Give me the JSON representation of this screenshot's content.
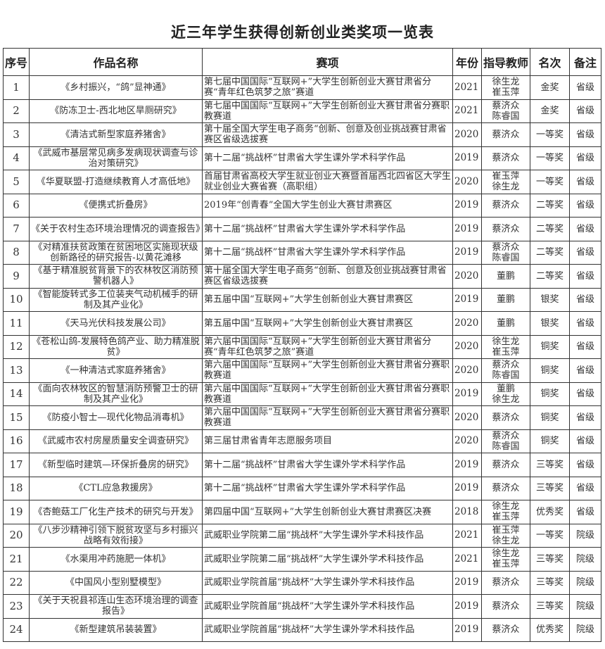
{
  "title": "近三年学生获得创新创业类奖项一览表",
  "headers": [
    "序号",
    "作品名称",
    "赛项",
    "年份",
    "指导教师",
    "名次",
    "备注"
  ],
  "rows": [
    {
      "no": "1",
      "name": "《乡村振兴，“鸽”显神通》",
      "competition": "第七届中国国际“互联网+”大学生创新创业大赛甘肃省分赛“青年红色筑梦之旅”赛道",
      "year": "2021",
      "teacher": "徐生龙 崔玉萍",
      "rank": "金奖",
      "level": "省级"
    },
    {
      "no": "2",
      "name": "《防冻卫士-西北地区旱厕研究》",
      "competition": "第七届中国国际“互联网+”大学生创新创业大赛甘肃省分赛职教赛道",
      "year": "2021",
      "teacher": "蔡济众 陈睿国",
      "rank": "金奖",
      "level": "省级"
    },
    {
      "no": "3",
      "name": "《清洁式新型家庭养猪舍》",
      "competition": "第十届全国大学生电子商务“创新、创意及创业挑战赛甘肃省赛区省级选拔赛",
      "year": "2020",
      "teacher": "蔡济众",
      "rank": "一等奖",
      "level": "省级"
    },
    {
      "no": "4",
      "name": "《武威市基层常见病多发病现状调查与诊治对策研究》",
      "competition": "第十二届“挑战杯”甘肃省大学生课外学术科学作品",
      "year": "2019",
      "teacher": "蔡济众",
      "rank": "一等奖",
      "level": "省级"
    },
    {
      "no": "5",
      "name": "《华夏联盟-打造继续教育人才高低地》",
      "competition": "首届甘肃省高校大学生就业创业大赛暨首届西北四省区大学生就业创业大赛省赛（高职组）",
      "year": "2020",
      "teacher": "崔玉萍 徐生龙",
      "rank": "一等奖",
      "level": "省级"
    },
    {
      "no": "6",
      "name": "《便携式折叠房》",
      "competition": "2019年“创青春”全国大学生创业大赛甘肃赛区",
      "year": "2019",
      "teacher": "蔡济众",
      "rank": "二等奖",
      "level": "省级"
    },
    {
      "no": "7",
      "name": "《关于农村生态环境治理情况的调查报告》",
      "competition": "第十二届“挑战杯”甘肃省大学生课外学术科学作品",
      "year": "2019",
      "teacher": "蔡济众",
      "rank": "二等奖",
      "level": "省级"
    },
    {
      "no": "8",
      "name": "《对精准扶贫政策在贫困地区实施现状级创新路径的研究报告-以黄花滩移",
      "competition": "第十二届“挑战杯”甘肃省大学生课外学术科学作品",
      "year": "2019",
      "teacher": "蔡济众 陈睿国",
      "rank": "二等奖",
      "level": "省级"
    },
    {
      "no": "9",
      "name": "《基于精准脱贫背景下的农林牧区消防预警机器人》",
      "competition": "第十届全国大学生电子商务“创新、创意及创业挑战赛甘肃省赛区省级选拔赛",
      "year": "2020",
      "teacher": "董鹏",
      "rank": "二等奖",
      "level": "省级"
    },
    {
      "no": "10",
      "name": "《智能旋转式多工位装夹气动机械手的研制及其产业化》",
      "competition": "第五届中国“互联网+”大学生创新创业大赛甘肃赛区",
      "year": "2019",
      "teacher": "董鹏",
      "rank": "银奖",
      "level": "省级"
    },
    {
      "no": "11",
      "name": "《天马光伏科技发展公司》",
      "competition": "第五届中国“互联网+”大学生创新创业大赛甘肃赛区",
      "year": "2020",
      "teacher": "董鹏",
      "rank": "银奖",
      "level": "省级"
    },
    {
      "no": "12",
      "name": "《苍松山鸽-发展特色鸽产业、助力精准脱贫》",
      "competition": "第六届中国国际“互联网+”大学生创新创业大赛甘肃省分赛“青年红色筑梦之旅”赛道",
      "year": "2020",
      "teacher": "徐生龙 崔玉萍",
      "rank": "铜奖",
      "level": "省级"
    },
    {
      "no": "13",
      "name": "《一种清洁式家庭养猪舍》",
      "competition": "第六届中国国际“互联网+”大学生创新创业大赛甘肃省分赛职教赛道",
      "year": "2020",
      "teacher": "蔡济众 陈睿国",
      "rank": "铜奖",
      "level": "省级"
    },
    {
      "no": "14",
      "name": "《面向农林牧区的智慧消防预警卫士的研制及其产业化》",
      "competition": "第六届中国国际“互联网+”大学生创新创业大赛甘肃省分赛职教赛道",
      "year": "2019",
      "teacher": "董鹏 徐生龙",
      "rank": "铜奖",
      "level": "省级"
    },
    {
      "no": "15",
      "name": "《防疫小智士—现代化物品消毒机》",
      "competition": "第六届中国国际“互联网+”大学生创新创业大赛甘肃省分赛职教赛道",
      "year": "2020",
      "teacher": "蔡济众",
      "rank": "铜奖",
      "level": "省级"
    },
    {
      "no": "16",
      "name": "《武威市农村房屋质量安全调查研究》",
      "competition": "第三届甘肃省青年志愿服务项目",
      "year": "2020",
      "teacher": "蔡济众 陈睿国",
      "rank": "铜奖",
      "level": "省级"
    },
    {
      "no": "17",
      "name": "《新型临时建筑—环保折叠房的研究》",
      "competition": "第十二届“挑战杯”甘肃省大学生课外学术科学作品",
      "year": "2019",
      "teacher": "蔡济众",
      "rank": "三等奖",
      "level": "省级"
    },
    {
      "no": "18",
      "name": "《CTL应急救援房》",
      "competition": "第十二届“挑战杯”甘肃省大学生课外学术科学作品",
      "year": "2019",
      "teacher": "蔡济众",
      "rank": "三等奖",
      "level": "省级"
    },
    {
      "no": "19",
      "name": "《杏鲍菇工厂化生产技术的研究与开发》",
      "competition": "第四届中国“互联网+”大学生创新创业大赛甘肃赛区决赛",
      "year": "2018",
      "teacher": "徐生龙 崔玉萍",
      "rank": "优秀奖",
      "level": "省级"
    },
    {
      "no": "20",
      "name": "《八步沙精神引领下脱贫攻坚与乡村振兴战略有效衔接》",
      "competition": "武威职业学院第二届“挑战杯”大学生课外学术科技作品",
      "year": "2021",
      "teacher": "崔玉萍 徐生龙",
      "rank": "一等奖",
      "level": "院级"
    },
    {
      "no": "21",
      "name": "《水渠用冲药施肥一体机》",
      "competition": "武威职业学院第二届“挑战杯”大学生课外学术科技作品",
      "year": "2021",
      "teacher": "徐生龙 崔玉萍",
      "rank": "三等奖",
      "level": "院级"
    },
    {
      "no": "22",
      "name": "《中国风小型别墅模型》",
      "competition": "武威职业学院首届“挑战杯”大学生课外学术科技作品",
      "year": "2019",
      "teacher": "蔡济众",
      "rank": "三等奖",
      "level": "院级"
    },
    {
      "no": "23",
      "name": "《关于天祝县祁连山生态环境治理的调查报告》",
      "competition": "武威职业学院首届“挑战杯”大学生课外学术科技作品",
      "year": "2019",
      "teacher": "蔡济众",
      "rank": "三等奖",
      "level": "院级"
    },
    {
      "no": "24",
      "name": "《新型建筑吊装装置》",
      "competition": "武威职业学院首届“挑战杯”大学生课外学术科技作品",
      "year": "2019",
      "teacher": "蔡济众",
      "rank": "优秀奖",
      "level": "院级"
    }
  ]
}
